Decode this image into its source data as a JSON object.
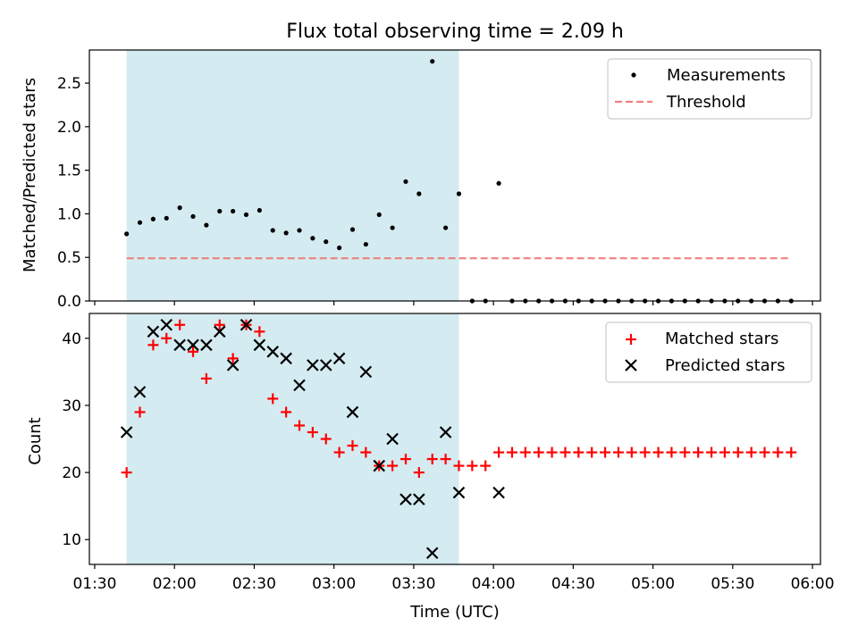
{
  "chart_data": [
    {
      "type": "scatter",
      "title": "Flux total observing time = 2.09 h",
      "xlabel": "",
      "ylabel": "Matched/Predicted stars",
      "ylim": [
        0,
        2.88
      ],
      "yticks": [
        0.0,
        0.5,
        1.0,
        1.5,
        2.0,
        2.5
      ],
      "ytick_labels": [
        "0.0",
        "0.5",
        "1.0",
        "1.5",
        "2.0",
        "2.5"
      ],
      "xlim": [
        "01:28",
        "06:03"
      ],
      "legend_position": "upper right",
      "shaded_span": {
        "x_start": "01:42",
        "x_end": "03:47",
        "color": "#d4ebf1"
      },
      "series": [
        {
          "name": "Measurements",
          "marker": "dot",
          "color": "#000000",
          "x": [
            "01:42",
            "01:47",
            "01:52",
            "01:57",
            "02:02",
            "02:07",
            "02:12",
            "02:17",
            "02:22",
            "02:27",
            "02:32",
            "02:37",
            "02:42",
            "02:47",
            "02:52",
            "02:57",
            "03:02",
            "03:07",
            "03:12",
            "03:17",
            "03:22",
            "03:27",
            "03:32",
            "03:37",
            "03:42",
            "03:47",
            "03:52",
            "03:57",
            "04:02",
            "04:07",
            "04:12",
            "04:17",
            "04:22",
            "04:27",
            "04:32",
            "04:37",
            "04:42",
            "04:47",
            "04:52",
            "04:57",
            "05:02",
            "05:07",
            "05:12",
            "05:17",
            "05:22",
            "05:27",
            "05:32",
            "05:37",
            "05:42",
            "05:47",
            "05:52"
          ],
          "y": [
            0.77,
            0.9,
            0.94,
            0.95,
            1.07,
            0.97,
            0.87,
            1.03,
            1.03,
            0.99,
            1.04,
            0.81,
            0.78,
            0.81,
            0.72,
            0.68,
            0.61,
            0.82,
            0.65,
            0.99,
            0.84,
            1.37,
            1.23,
            2.75,
            0.84,
            1.23,
            0,
            0,
            1.35,
            0,
            0,
            0,
            0,
            0,
            0,
            0,
            0,
            0,
            0,
            0,
            0,
            0,
            0,
            0,
            0,
            0,
            0,
            0,
            0,
            0,
            0
          ]
        },
        {
          "name": "Threshold",
          "style": "dashed",
          "color": "#f08080",
          "x": [
            "01:42",
            "05:52"
          ],
          "y": [
            0.49,
            0.49
          ]
        }
      ]
    },
    {
      "type": "scatter",
      "title": "",
      "xlabel": "Time (UTC)",
      "ylabel": "Count",
      "ylim": [
        6.3,
        43.7
      ],
      "yticks": [
        10,
        20,
        30,
        40
      ],
      "ytick_labels": [
        "10",
        "20",
        "30",
        "40"
      ],
      "xlim": [
        "01:28",
        "06:03"
      ],
      "xticks": [
        "01:30",
        "02:00",
        "02:30",
        "03:00",
        "03:30",
        "04:00",
        "04:30",
        "05:00",
        "05:30",
        "06:00"
      ],
      "legend_position": "upper right",
      "shaded_span": {
        "x_start": "01:42",
        "x_end": "03:47",
        "color": "#d4ebf1"
      },
      "series": [
        {
          "name": "Matched stars",
          "marker": "plus",
          "color": "#ff0000",
          "x": [
            "01:42",
            "01:47",
            "01:52",
            "01:57",
            "02:02",
            "02:07",
            "02:12",
            "02:17",
            "02:22",
            "02:27",
            "02:32",
            "02:37",
            "02:42",
            "02:47",
            "02:52",
            "02:57",
            "03:02",
            "03:07",
            "03:12",
            "03:17",
            "03:22",
            "03:27",
            "03:32",
            "03:37",
            "03:42",
            "03:47",
            "03:52",
            "03:57",
            "04:02",
            "04:07",
            "04:12",
            "04:17",
            "04:22",
            "04:27",
            "04:32",
            "04:37",
            "04:42",
            "04:47",
            "04:52",
            "04:57",
            "05:02",
            "05:07",
            "05:12",
            "05:17",
            "05:22",
            "05:27",
            "05:32",
            "05:37",
            "05:42",
            "05:47",
            "05:52"
          ],
          "y": [
            20,
            29,
            39,
            40,
            42,
            38,
            34,
            42,
            37,
            42,
            41,
            31,
            29,
            27,
            26,
            25,
            23,
            24,
            23,
            21,
            21,
            22,
            20,
            22,
            22,
            21,
            21,
            21,
            23,
            23,
            23,
            23,
            23,
            23,
            23,
            23,
            23,
            23,
            23,
            23,
            23,
            23,
            23,
            23,
            23,
            23,
            23,
            23,
            23,
            23,
            23
          ]
        },
        {
          "name": "Predicted stars",
          "marker": "x",
          "color": "#000000",
          "x": [
            "01:42",
            "01:47",
            "01:52",
            "01:57",
            "02:02",
            "02:07",
            "02:12",
            "02:17",
            "02:22",
            "02:27",
            "02:32",
            "02:37",
            "02:42",
            "02:47",
            "02:52",
            "02:57",
            "03:02",
            "03:07",
            "03:12",
            "03:17",
            "03:22",
            "03:27",
            "03:32",
            "03:37",
            "03:42",
            "03:47",
            "04:02"
          ],
          "y": [
            26,
            32,
            41,
            42,
            39,
            39,
            39,
            41,
            36,
            42,
            39,
            38,
            37,
            33,
            36,
            36,
            37,
            29,
            35,
            21,
            25,
            16,
            16,
            8,
            26,
            17,
            17
          ]
        }
      ]
    }
  ]
}
